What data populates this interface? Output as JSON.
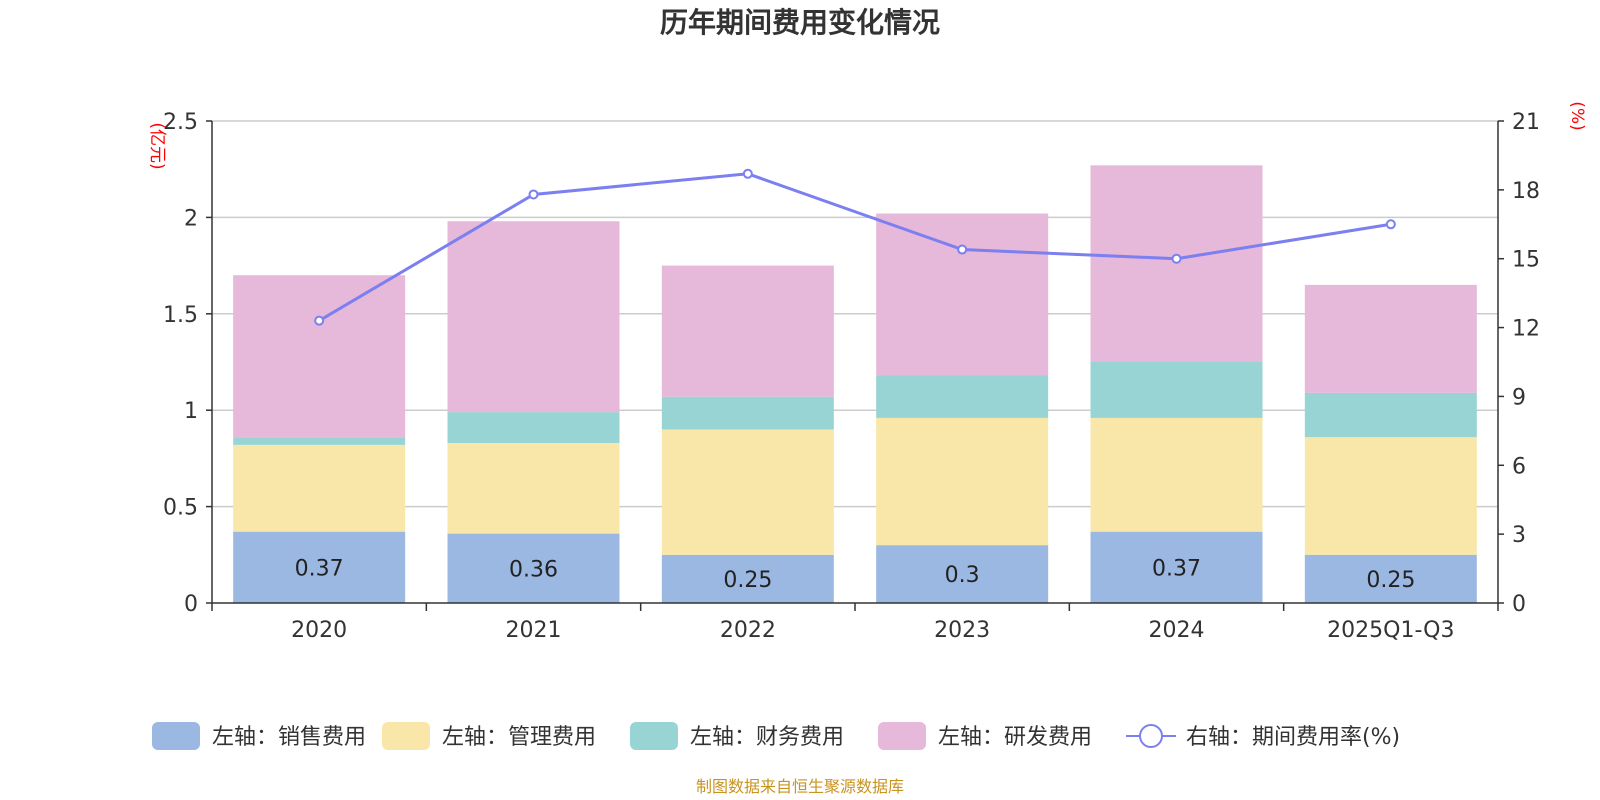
{
  "chart_data": {
    "type": "bar",
    "title": "历年期间费用变化情况",
    "categories": [
      "2020",
      "2021",
      "2022",
      "2023",
      "2024",
      "2025Q1-Q3"
    ],
    "left_axis": {
      "unit": "(亿元)",
      "ylim": [
        0,
        2.5
      ],
      "ticks": [
        "0",
        "0.5",
        "1",
        "1.5",
        "2",
        "2.5"
      ]
    },
    "right_axis": {
      "unit": "(%)",
      "ylim": [
        0,
        21
      ],
      "ticks": [
        "0",
        "3",
        "6",
        "9",
        "12",
        "15",
        "18",
        "21"
      ]
    },
    "series": [
      {
        "name": "左轴：销售费用",
        "type": "bar",
        "axis": "left",
        "color": "#9bb8e2",
        "values": [
          0.37,
          0.36,
          0.25,
          0.3,
          0.37,
          0.25
        ],
        "labels": [
          "0.37",
          "0.36",
          "0.25",
          "0.3",
          "0.37",
          "0.25"
        ]
      },
      {
        "name": "左轴：管理费用",
        "type": "bar",
        "axis": "left",
        "color": "#f8e7a8",
        "values": [
          0.45,
          0.47,
          0.65,
          0.66,
          0.59,
          0.61
        ]
      },
      {
        "name": "左轴：财务费用",
        "type": "bar",
        "axis": "left",
        "color": "#98d4d4",
        "values": [
          0.04,
          0.16,
          0.17,
          0.22,
          0.29,
          0.23
        ]
      },
      {
        "name": "左轴：研发费用",
        "type": "bar",
        "axis": "left",
        "color": "#e6b8d9",
        "values": [
          0.84,
          0.99,
          0.68,
          0.84,
          1.02,
          0.56
        ]
      },
      {
        "name": "右轴：期间费用率(%)",
        "type": "line",
        "axis": "right",
        "color": "#7b7ff0",
        "values": [
          12.3,
          17.8,
          18.7,
          15.4,
          15.0,
          16.5
        ]
      }
    ],
    "legend_position": "bottom",
    "grid": true
  },
  "source_note": "制图数据来自恒生聚源数据库"
}
